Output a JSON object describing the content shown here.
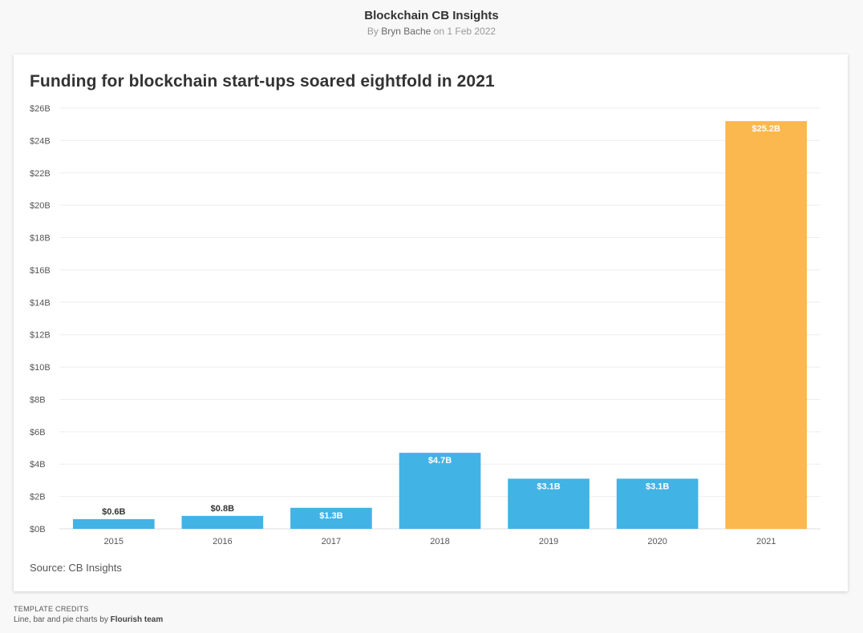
{
  "header": {
    "title": "Blockchain CB Insights",
    "byline_prefix": "By",
    "author": "Bryn Bache",
    "date_text": "on 1 Feb 2022"
  },
  "source": "Source: CB Insights",
  "credits": {
    "label": "TEMPLATE CREDITS",
    "text_prefix": "Line, bar and pie charts by",
    "team": "Flourish team"
  },
  "colors": {
    "default_bar": "#42b3e5",
    "highlight_bar": "#fbb84e"
  },
  "chart_data": {
    "type": "bar",
    "title": "Funding for blockchain start-ups soared eightfold in 2021",
    "categories": [
      "2015",
      "2016",
      "2017",
      "2018",
      "2019",
      "2020",
      "2021"
    ],
    "values": [
      0.6,
      0.8,
      1.3,
      4.7,
      3.1,
      3.1,
      25.2
    ],
    "value_labels": [
      "$0.6B",
      "$0.8B",
      "$1.3B",
      "$4.7B",
      "$3.1B",
      "$3.1B",
      "$25.2B"
    ],
    "highlight": [
      false,
      false,
      false,
      false,
      false,
      false,
      true
    ],
    "ylim": [
      0,
      26
    ],
    "yticks": [
      0,
      2,
      4,
      6,
      8,
      10,
      12,
      14,
      16,
      18,
      20,
      22,
      24,
      26
    ],
    "ytick_labels": [
      "$0B",
      "$2B",
      "$4B",
      "$6B",
      "$8B",
      "$10B",
      "$12B",
      "$14B",
      "$16B",
      "$18B",
      "$20B",
      "$22B",
      "$24B",
      "$26B"
    ],
    "xlabel": "",
    "ylabel": "",
    "grid": true
  }
}
